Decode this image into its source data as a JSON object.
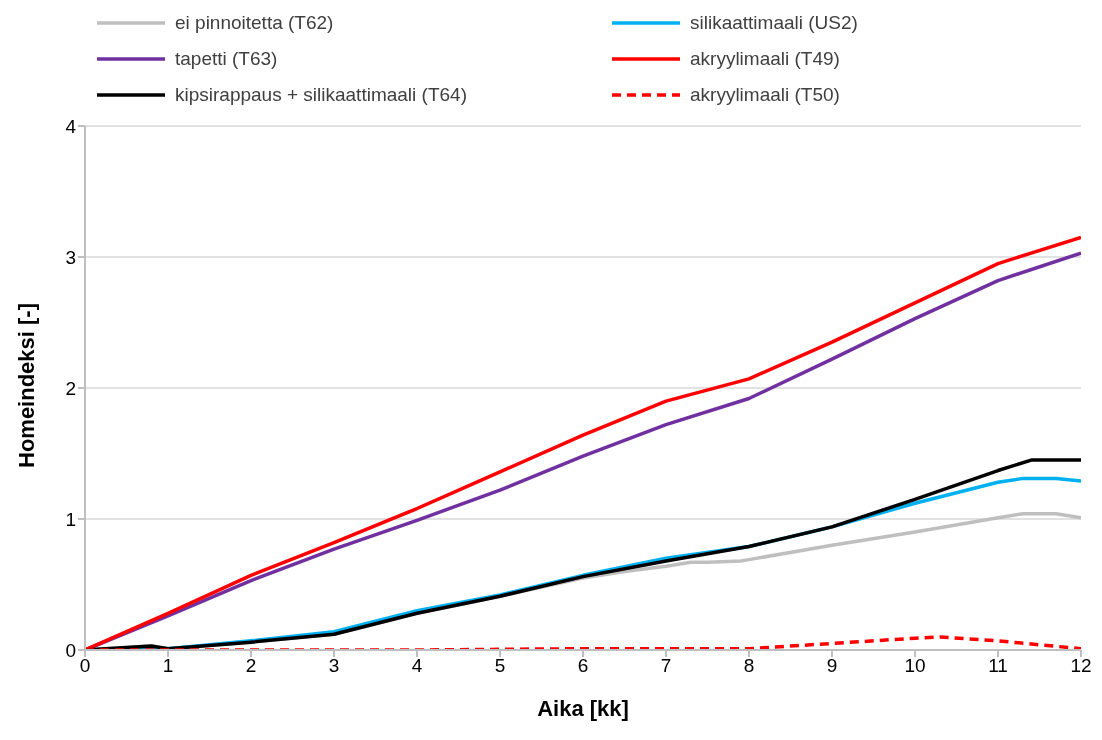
{
  "chart_data": {
    "type": "line",
    "xlabel": "Aika [kk]",
    "ylabel": "Homeindeksi [-]",
    "xlim": [
      0,
      12
    ],
    "xticks": [
      0,
      1,
      2,
      3,
      4,
      5,
      6,
      7,
      8,
      9,
      10,
      11,
      12
    ],
    "ylim": [
      0,
      4
    ],
    "yticks": [
      0,
      1,
      2,
      3,
      4
    ],
    "grid": "y",
    "legend": "top",
    "marker": "none",
    "series": [
      {
        "name": "ei pinnoitetta (T62)",
        "color": "#bfbfbf",
        "x": [
          0,
          0.8,
          1,
          2,
          3,
          4,
          5,
          6,
          6.5,
          7,
          7.3,
          7.5,
          7.9,
          8,
          9,
          10,
          11,
          11.3,
          11.7,
          12
        ],
        "values": [
          0,
          0.03,
          0.01,
          0.06,
          0.12,
          0.28,
          0.41,
          0.55,
          0.6,
          0.64,
          0.67,
          0.67,
          0.68,
          0.69,
          0.8,
          0.9,
          1.01,
          1.04,
          1.04,
          1.01
        ]
      },
      {
        "name": "silikaattimaali (US2)",
        "color": "#00b0f0",
        "x": [
          0,
          0.8,
          1,
          2,
          3,
          4,
          5,
          6,
          7,
          8,
          9,
          10,
          11,
          11.3,
          11.7,
          12
        ],
        "values": [
          0,
          0.02,
          0.01,
          0.07,
          0.14,
          0.3,
          0.42,
          0.57,
          0.7,
          0.79,
          0.94,
          1.12,
          1.28,
          1.31,
          1.31,
          1.29
        ]
      },
      {
        "name": "tapetti (T63)",
        "color": "#7030a0",
        "x": [
          0,
          1,
          2,
          3,
          4,
          5,
          6,
          7,
          8,
          9,
          10,
          11,
          12
        ],
        "values": [
          0,
          0.26,
          0.53,
          0.77,
          0.99,
          1.22,
          1.48,
          1.72,
          1.92,
          2.22,
          2.53,
          2.82,
          3.03
        ]
      },
      {
        "name": "akryylimaali (T49)",
        "color": "#ff0000",
        "x": [
          0,
          1,
          2,
          3,
          4,
          5,
          6,
          7,
          8,
          9,
          10,
          11,
          12
        ],
        "values": [
          0,
          0.28,
          0.57,
          0.82,
          1.08,
          1.36,
          1.64,
          1.9,
          2.07,
          2.35,
          2.65,
          2.95,
          3.15
        ]
      },
      {
        "name": "kipsirappaus + silikaattimaali (T64)",
        "color": "#000000",
        "x": [
          0,
          0.8,
          1,
          2,
          3,
          4,
          5,
          6,
          7,
          8,
          9,
          10,
          11,
          11.4,
          12
        ],
        "values": [
          0,
          0.03,
          0.01,
          0.06,
          0.12,
          0.28,
          0.41,
          0.56,
          0.68,
          0.79,
          0.94,
          1.15,
          1.37,
          1.45,
          1.45
        ]
      },
      {
        "name": "akryylimaali (T50)",
        "color": "#ff0000",
        "line_style": "dashed",
        "x": [
          0,
          2,
          4,
          6,
          8,
          9,
          10,
          10.3,
          11,
          12
        ],
        "values": [
          0,
          0,
          0,
          0.01,
          0.01,
          0.05,
          0.09,
          0.1,
          0.07,
          0.01
        ]
      }
    ]
  }
}
